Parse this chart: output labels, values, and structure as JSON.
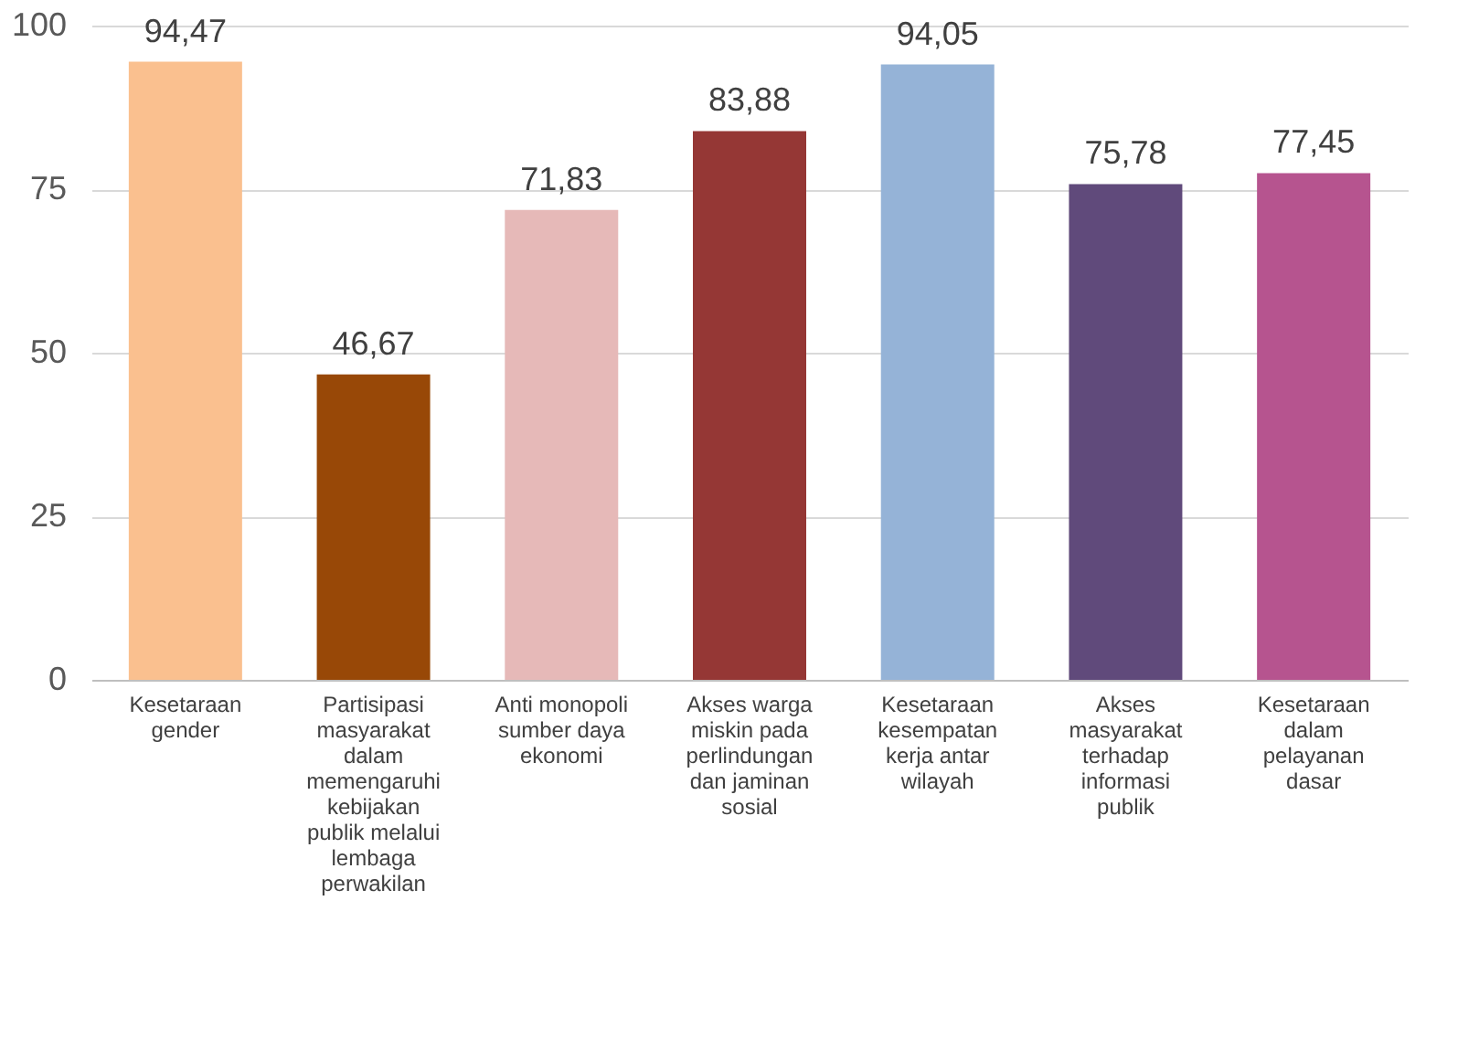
{
  "chart_data": {
    "type": "bar",
    "categories": [
      "Kesetaraan gender",
      "Partisipasi masyarakat dalam memengaruhi kebijakan publik melalui lembaga perwakilan",
      "Anti monopoli sumber daya ekonomi",
      "Akses warga miskin pada perlindungan dan jaminan sosial",
      "Kesetaraan kesempatan kerja antar wilayah",
      "Akses masyarakat terhadap informasi publik",
      "Kesetaraan dalam pelayanan dasar"
    ],
    "values": [
      94.47,
      46.67,
      71.83,
      83.88,
      94.05,
      75.78,
      77.45
    ],
    "colors": [
      "#fac08f",
      "#984807",
      "#e6b9b8",
      "#953735",
      "#95b3d7",
      "#604a7b",
      "#b6548f"
    ],
    "value_labels": [
      "94,47",
      "46,67",
      "71,83",
      "83,88",
      "94,05",
      "75,78",
      "77,45"
    ],
    "ylim": [
      0,
      100
    ],
    "yticks": [
      0,
      25,
      50,
      75,
      100
    ],
    "grid": "y"
  }
}
